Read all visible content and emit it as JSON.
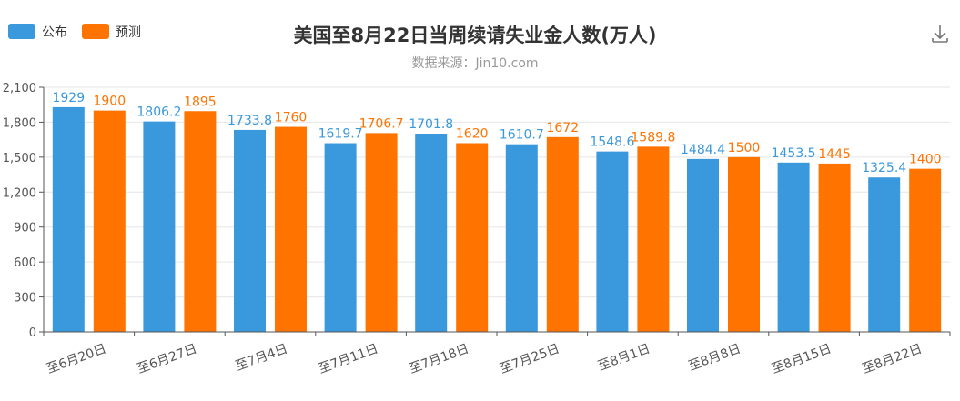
{
  "chart_data": {
    "type": "bar",
    "title": "美国至8月22日当周续请失业金人数(万人)",
    "subtitle": "数据来源：Jin10.com",
    "categories": [
      "至6月20日",
      "至6月27日",
      "至7月4日",
      "至7月11日",
      "至7月18日",
      "至7月25日",
      "至8月1日",
      "至8月8日",
      "至8月15日",
      "至8月22日"
    ],
    "series": [
      {
        "name": "公布",
        "color": "#3a98dc",
        "values": [
          1929,
          1806.2,
          1733.8,
          1619.7,
          1701.8,
          1610.7,
          1548.6,
          1484.4,
          1453.5,
          1325.4
        ]
      },
      {
        "name": "预测",
        "color": "#ff7300",
        "values": [
          1900,
          1895,
          1760,
          1706.7,
          1620,
          1672,
          1589.8,
          1500,
          1445,
          1400
        ]
      }
    ],
    "ylim": [
      0,
      2100
    ],
    "yticks": [
      0,
      300,
      600,
      900,
      1200,
      1500,
      1800,
      2100
    ],
    "ytick_labels": [
      "0",
      "300",
      "600",
      "900",
      "1,200",
      "1,500",
      "1,800",
      "2,100"
    ],
    "legend_position": "top-left",
    "grid": true
  },
  "toolbar": {
    "download_icon": "download-icon"
  }
}
